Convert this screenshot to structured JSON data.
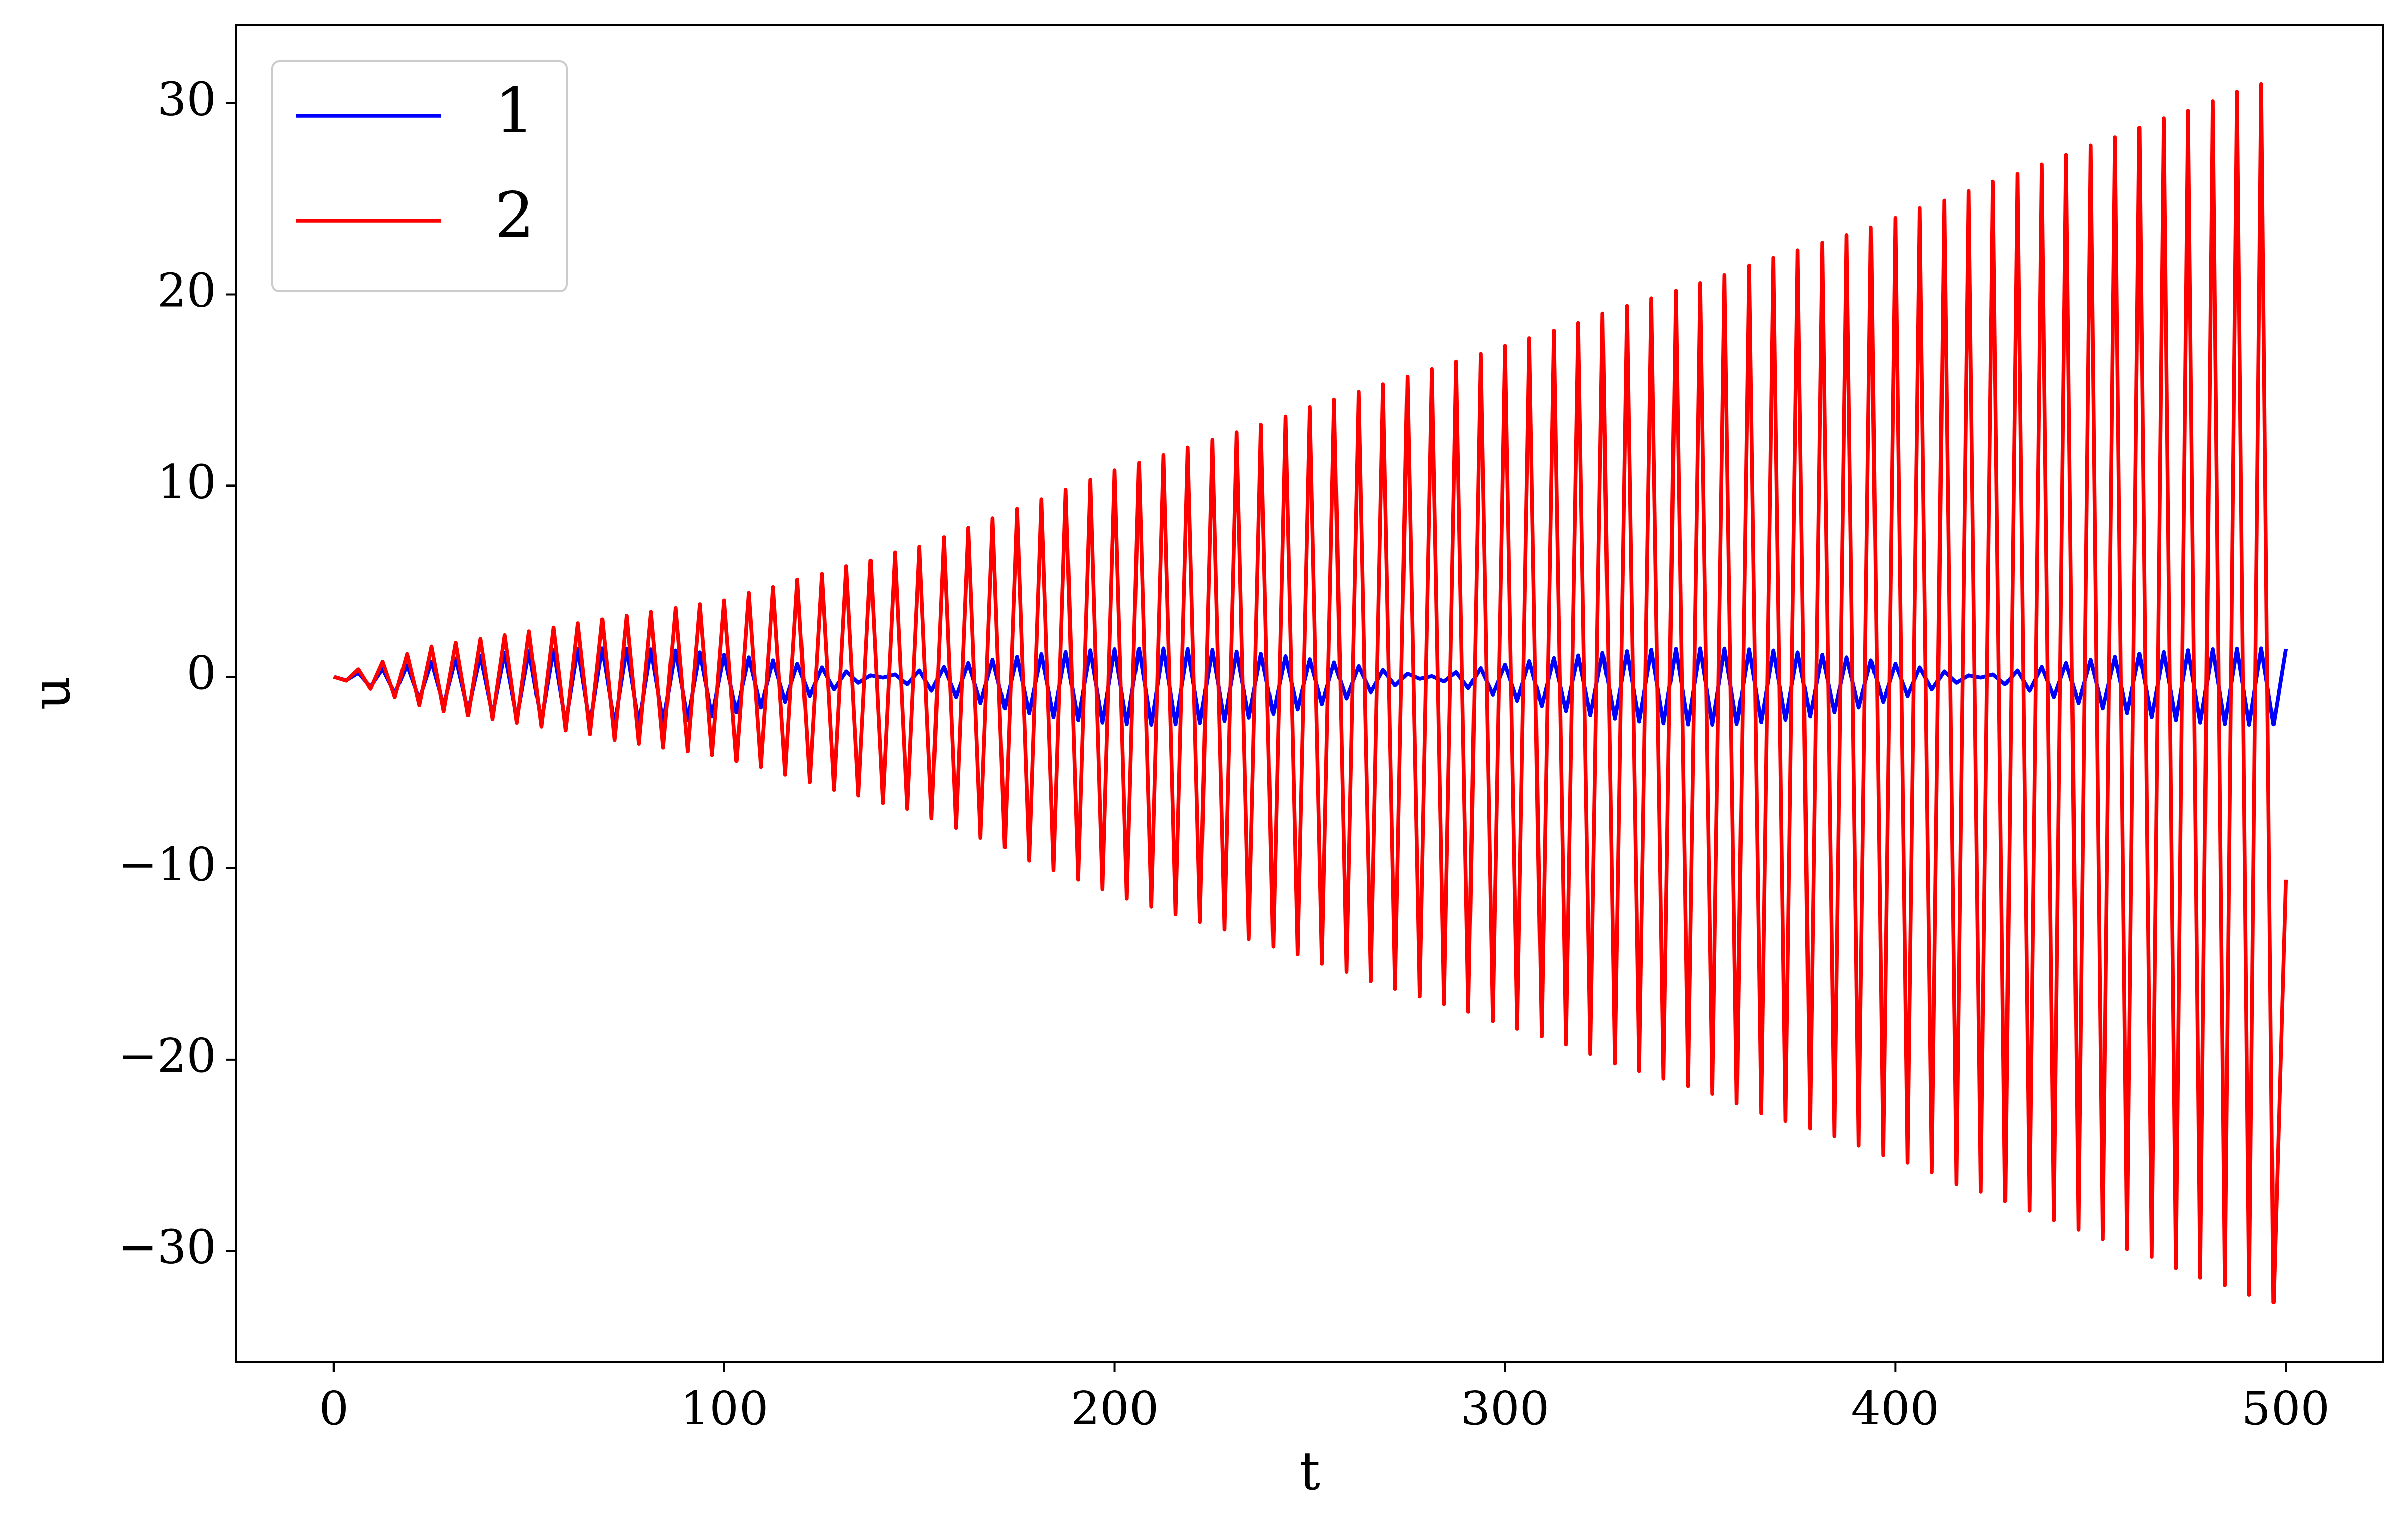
{
  "chart_data": {
    "type": "line",
    "x_label": "t",
    "y_label": "u",
    "xlim": [
      -25,
      525
    ],
    "ylim": [
      -35.8,
      34.1
    ],
    "xticks": [
      0,
      100,
      200,
      300,
      400,
      500
    ],
    "yticks": [
      {
        "value": -30,
        "label": "−30"
      },
      {
        "value": -20,
        "label": "−20"
      },
      {
        "value": -10,
        "label": "−10"
      },
      0,
      10,
      20,
      30
    ],
    "legend": "upper left",
    "x": [
      0,
      3.125,
      6.25,
      9.375,
      12.5,
      15.625,
      18.75,
      21.875,
      25,
      28.125,
      31.25,
      34.375,
      37.5,
      40.625,
      43.75,
      46.875,
      50,
      53.125,
      56.25,
      59.375,
      62.5,
      65.625,
      68.75,
      71.875,
      75,
      78.125,
      81.25,
      84.375,
      87.5,
      90.625,
      93.75,
      96.875,
      100,
      103.125,
      106.25,
      109.375,
      112.5,
      115.625,
      118.75,
      121.875,
      125,
      128.125,
      131.25,
      134.375,
      137.5,
      140.625,
      143.75,
      146.875,
      150,
      153.125,
      156.25,
      159.375,
      162.5,
      165.625,
      168.75,
      171.875,
      175,
      178.125,
      181.25,
      184.375,
      187.5,
      190.625,
      193.75,
      196.875,
      200,
      203.125,
      206.25,
      209.375,
      212.5,
      215.625,
      218.75,
      221.875,
      225,
      228.125,
      231.25,
      234.375,
      237.5,
      240.625,
      243.75,
      246.875,
      250,
      253.125,
      256.25,
      259.375,
      262.5,
      265.625,
      268.75,
      271.875,
      275,
      278.125,
      281.25,
      284.375,
      287.5,
      290.625,
      293.75,
      296.875,
      300,
      303.125,
      306.25,
      309.375,
      312.5,
      315.625,
      318.75,
      321.875,
      325,
      328.125,
      331.25,
      334.375,
      337.5,
      340.625,
      343.75,
      346.875,
      350,
      353.125,
      356.25,
      359.375,
      362.5,
      365.625,
      368.75,
      371.875,
      375,
      378.125,
      381.25,
      384.375,
      387.5,
      390.625,
      393.75,
      396.875,
      400,
      403.125,
      406.25,
      409.375,
      412.5,
      415.625,
      418.75,
      421.875,
      425,
      428.125,
      431.25,
      434.375,
      437.5,
      440.625,
      443.75,
      446.875,
      450,
      453.125,
      456.25,
      459.375,
      462.5,
      465.625,
      468.75,
      471.875,
      475,
      478.125,
      481.25,
      484.375,
      487.5,
      490.625,
      493.75,
      496.875,
      500
    ],
    "series": [
      {
        "name": "1",
        "color": "#0000ff",
        "values": [
          0,
          -0.18,
          0.21,
          -0.52,
          0.42,
          -0.86,
          0.61,
          -1.18,
          0.8,
          -1.48,
          0.97,
          -1.74,
          1.12,
          -1.98,
          1.25,
          -2.17,
          1.35,
          -2.32,
          1.43,
          -2.43,
          1.48,
          -2.49,
          1.5,
          -2.5,
          1.49,
          -2.46,
          1.45,
          -2.37,
          1.39,
          -2.24,
          1.29,
          -2.06,
          1.17,
          -1.84,
          1.03,
          -1.59,
          0.87,
          -1.3,
          0.69,
          -0.99,
          0.5,
          -0.66,
          0.29,
          -0.31,
          0.08,
          -0.04,
          0.13,
          -0.39,
          0.34,
          -0.73,
          0.53,
          -1.05,
          0.73,
          -1.36,
          0.9,
          -1.64,
          1.06,
          -1.89,
          1.2,
          -2.1,
          1.31,
          -2.26,
          1.4,
          -2.39,
          1.46,
          -2.47,
          1.49,
          -2.5,
          1.5,
          -2.48,
          1.47,
          -2.41,
          1.42,
          -2.3,
          1.33,
          -2.13,
          1.22,
          -1.93,
          1.09,
          -1.69,
          0.93,
          -1.42,
          0.76,
          -1.12,
          0.57,
          -0.8,
          0.37,
          -0.45,
          0.17,
          -0.1,
          0.04,
          -0.24,
          0.25,
          -0.59,
          0.46,
          -0.92,
          0.65,
          -1.24,
          0.83,
          -1.52,
          0.99,
          -1.78,
          1.13,
          -2.0,
          1.26,
          -2.18,
          1.35,
          -2.33,
          1.43,
          -2.43,
          1.48,
          -2.49,
          1.5,
          -2.5,
          1.49,
          -2.46,
          1.45,
          -2.37,
          1.39,
          -2.24,
          1.29,
          -2.06,
          1.17,
          -1.84,
          1.03,
          -1.59,
          0.87,
          -1.3,
          0.69,
          -0.99,
          0.5,
          -0.66,
          0.29,
          -0.31,
          0.08,
          -0.04,
          0.13,
          -0.39,
          0.34,
          -0.73,
          0.53,
          -1.05,
          0.73,
          -1.36,
          0.9,
          -1.64,
          1.06,
          -1.89,
          1.2,
          -2.1,
          1.31,
          -2.26,
          1.4,
          -2.39,
          1.46,
          -2.47,
          1.49,
          -2.5,
          1.5,
          -2.48,
          1.47
        ]
      },
      {
        "name": "2",
        "color": "#ff0000",
        "values": [
          0,
          -0.2,
          0.4,
          -0.63,
          0.8,
          -1.05,
          1.2,
          -1.47,
          1.6,
          -1.79,
          1.8,
          -2.0,
          2.0,
          -2.2,
          2.2,
          -2.4,
          2.4,
          -2.6,
          2.6,
          -2.8,
          2.8,
          -3.0,
          3.0,
          -3.3,
          3.2,
          -3.5,
          3.4,
          -3.7,
          3.6,
          -3.9,
          3.8,
          -4.1,
          4.0,
          -4.4,
          4.4,
          -4.7,
          4.7,
          -5.1,
          5.1,
          -5.5,
          5.4,
          -5.9,
          5.8,
          -6.2,
          6.1,
          -6.6,
          6.5,
          -6.9,
          6.8,
          -7.4,
          7.3,
          -7.9,
          7.8,
          -8.4,
          8.3,
          -8.9,
          8.8,
          -9.6,
          9.3,
          -10.1,
          9.8,
          -10.6,
          10.3,
          -11.1,
          10.8,
          -11.6,
          11.2,
          -12.0,
          11.6,
          -12.4,
          12.0,
          -12.8,
          12.4,
          -13.2,
          12.8,
          -13.7,
          13.2,
          -14.1,
          13.6,
          -14.5,
          14.1,
          -15.0,
          14.5,
          -15.4,
          14.9,
          -15.9,
          15.3,
          -16.3,
          15.7,
          -16.7,
          16.1,
          -17.1,
          16.5,
          -17.5,
          16.9,
          -18.0,
          17.3,
          -18.4,
          17.7,
          -18.8,
          18.1,
          -19.2,
          18.5,
          -19.7,
          19.0,
          -20.2,
          19.4,
          -20.6,
          19.8,
          -21.0,
          20.2,
          -21.4,
          20.6,
          -21.8,
          21.0,
          -22.3,
          21.5,
          -22.8,
          21.9,
          -23.2,
          22.3,
          -23.6,
          22.7,
          -24.0,
          23.1,
          -24.5,
          23.5,
          -25.0,
          24.0,
          -25.4,
          24.5,
          -25.9,
          24.9,
          -26.5,
          25.4,
          -26.9,
          25.9,
          -27.4,
          26.3,
          -27.9,
          26.8,
          -28.4,
          27.3,
          -28.9,
          27.8,
          -29.4,
          28.2,
          -29.9,
          28.7,
          -30.3,
          29.2,
          -30.9,
          29.6,
          -31.4,
          30.1,
          -31.8,
          30.6,
          -32.3,
          31.0,
          -32.7,
          -10.6
        ]
      }
    ]
  }
}
